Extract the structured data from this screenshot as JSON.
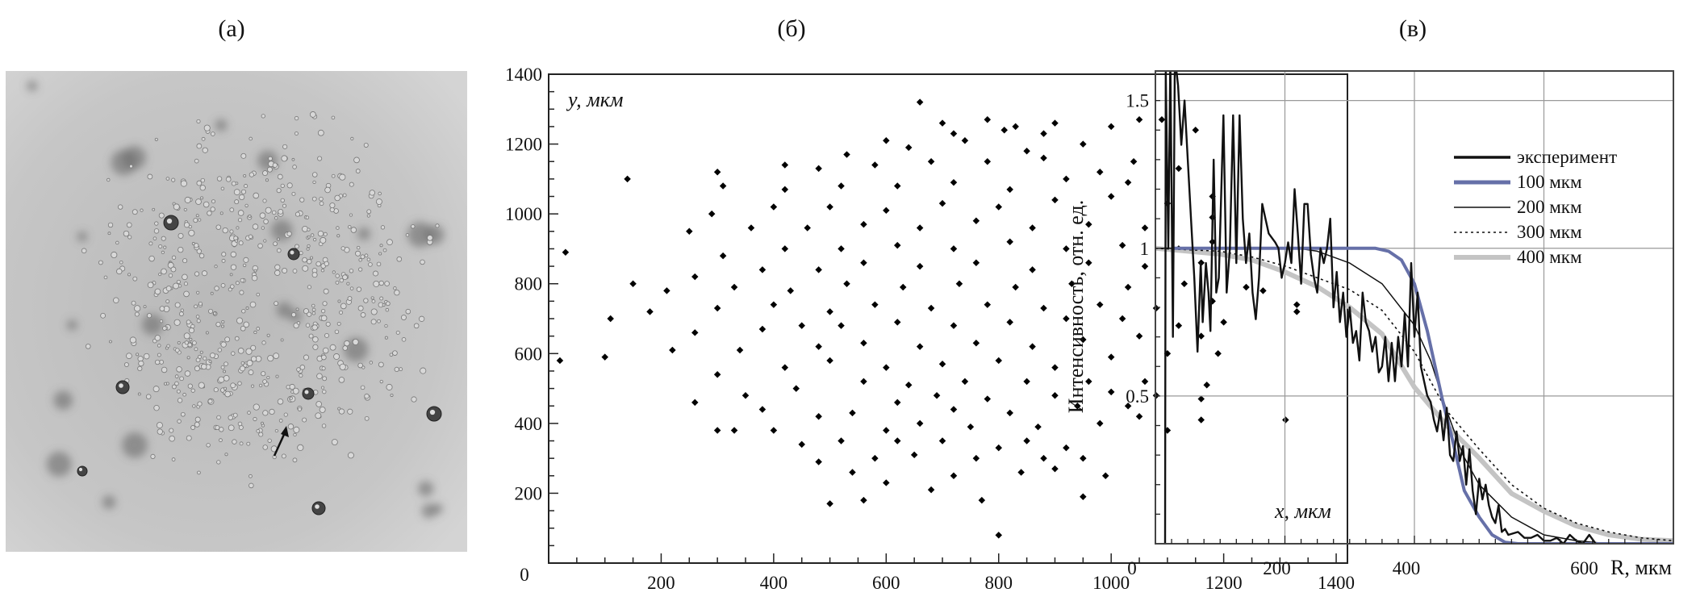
{
  "panels": {
    "a": "(а)",
    "b": "(б)",
    "c": "(в)"
  },
  "chart_data": [
    {
      "type": "image",
      "panel": "(а)",
      "description_visible": "microscope photo of droplet cluster"
    },
    {
      "type": "scatter",
      "panel": "(б)",
      "xlabel": "x, мкм",
      "ylabel": "y, мкм",
      "xlim": [
        0,
        1420
      ],
      "ylim": [
        0,
        1400
      ],
      "origin_label": "0",
      "xticks": [
        200,
        400,
        600,
        800,
        1000,
        1200,
        1400
      ],
      "yticks": [
        200,
        400,
        600,
        800,
        1000,
        1200,
        1400
      ],
      "grid": false,
      "points": [
        [
          30,
          890
        ],
        [
          20,
          580
        ],
        [
          140,
          1100
        ],
        [
          110,
          700
        ],
        [
          100,
          590
        ],
        [
          1330,
          740
        ],
        [
          1330,
          720
        ],
        [
          1310,
          410
        ],
        [
          800,
          80
        ],
        [
          500,
          170
        ],
        [
          950,
          190
        ],
        [
          660,
          1320
        ],
        [
          1090,
          1270
        ],
        [
          1150,
          1240
        ],
        [
          560,
          180
        ],
        [
          770,
          180
        ],
        [
          990,
          250
        ],
        [
          600,
          230
        ],
        [
          680,
          210
        ],
        [
          720,
          250
        ],
        [
          840,
          260
        ],
        [
          900,
          270
        ],
        [
          540,
          260
        ],
        [
          480,
          290
        ],
        [
          580,
          300
        ],
        [
          650,
          310
        ],
        [
          760,
          300
        ],
        [
          880,
          300
        ],
        [
          950,
          300
        ],
        [
          620,
          350
        ],
        [
          700,
          350
        ],
        [
          800,
          330
        ],
        [
          920,
          330
        ],
        [
          450,
          340
        ],
        [
          520,
          350
        ],
        [
          850,
          350
        ],
        [
          1100,
          380
        ],
        [
          1160,
          410
        ],
        [
          1050,
          420
        ],
        [
          980,
          400
        ],
        [
          400,
          380
        ],
        [
          330,
          380
        ],
        [
          300,
          380
        ],
        [
          600,
          380
        ],
        [
          660,
          400
        ],
        [
          750,
          390
        ],
        [
          870,
          390
        ],
        [
          540,
          430
        ],
        [
          480,
          420
        ],
        [
          720,
          440
        ],
        [
          820,
          430
        ],
        [
          940,
          450
        ],
        [
          1030,
          450
        ],
        [
          1160,
          470
        ],
        [
          260,
          460
        ],
        [
          380,
          440
        ],
        [
          620,
          460
        ],
        [
          690,
          480
        ],
        [
          780,
          470
        ],
        [
          900,
          480
        ],
        [
          1000,
          490
        ],
        [
          1080,
          480
        ],
        [
          350,
          480
        ],
        [
          440,
          500
        ],
        [
          560,
          520
        ],
        [
          640,
          510
        ],
        [
          740,
          520
        ],
        [
          850,
          520
        ],
        [
          960,
          520
        ],
        [
          1060,
          520
        ],
        [
          1170,
          510
        ],
        [
          300,
          540
        ],
        [
          420,
          560
        ],
        [
          500,
          580
        ],
        [
          600,
          560
        ],
        [
          700,
          570
        ],
        [
          800,
          580
        ],
        [
          900,
          560
        ],
        [
          1000,
          590
        ],
        [
          1100,
          600
        ],
        [
          1190,
          600
        ],
        [
          220,
          610
        ],
        [
          340,
          610
        ],
        [
          480,
          620
        ],
        [
          560,
          630
        ],
        [
          660,
          620
        ],
        [
          760,
          630
        ],
        [
          860,
          620
        ],
        [
          950,
          640
        ],
        [
          1050,
          650
        ],
        [
          1160,
          650
        ],
        [
          260,
          660
        ],
        [
          380,
          670
        ],
        [
          450,
          680
        ],
        [
          520,
          680
        ],
        [
          620,
          690
        ],
        [
          720,
          680
        ],
        [
          820,
          690
        ],
        [
          920,
          700
        ],
        [
          1020,
          700
        ],
        [
          1120,
          680
        ],
        [
          1200,
          690
        ],
        [
          180,
          720
        ],
        [
          300,
          730
        ],
        [
          400,
          740
        ],
        [
          500,
          720
        ],
        [
          580,
          740
        ],
        [
          680,
          730
        ],
        [
          780,
          740
        ],
        [
          880,
          730
        ],
        [
          980,
          740
        ],
        [
          1080,
          730
        ],
        [
          1180,
          750
        ],
        [
          210,
          780
        ],
        [
          330,
          790
        ],
        [
          430,
          780
        ],
        [
          530,
          800
        ],
        [
          630,
          790
        ],
        [
          730,
          800
        ],
        [
          830,
          790
        ],
        [
          930,
          800
        ],
        [
          1030,
          790
        ],
        [
          1130,
          800
        ],
        [
          1240,
          790
        ],
        [
          1270,
          780
        ],
        [
          150,
          800
        ],
        [
          260,
          820
        ],
        [
          380,
          840
        ],
        [
          480,
          840
        ],
        [
          560,
          860
        ],
        [
          660,
          850
        ],
        [
          760,
          860
        ],
        [
          860,
          840
        ],
        [
          960,
          860
        ],
        [
          1060,
          850
        ],
        [
          1160,
          860
        ],
        [
          310,
          880
        ],
        [
          420,
          900
        ],
        [
          520,
          900
        ],
        [
          620,
          910
        ],
        [
          720,
          900
        ],
        [
          820,
          920
        ],
        [
          920,
          900
        ],
        [
          1020,
          910
        ],
        [
          1120,
          900
        ],
        [
          1180,
          920
        ],
        [
          250,
          950
        ],
        [
          360,
          960
        ],
        [
          460,
          960
        ],
        [
          560,
          970
        ],
        [
          660,
          960
        ],
        [
          760,
          980
        ],
        [
          860,
          960
        ],
        [
          960,
          970
        ],
        [
          1060,
          960
        ],
        [
          1180,
          990
        ],
        [
          290,
          1000
        ],
        [
          400,
          1020
        ],
        [
          500,
          1020
        ],
        [
          600,
          1010
        ],
        [
          700,
          1030
        ],
        [
          800,
          1020
        ],
        [
          900,
          1040
        ],
        [
          1000,
          1050
        ],
        [
          1100,
          1030
        ],
        [
          1180,
          1050
        ],
        [
          310,
          1080
        ],
        [
          420,
          1070
        ],
        [
          520,
          1080
        ],
        [
          620,
          1080
        ],
        [
          720,
          1090
        ],
        [
          820,
          1070
        ],
        [
          920,
          1100
        ],
        [
          1030,
          1090
        ],
        [
          1120,
          1130
        ],
        [
          300,
          1120
        ],
        [
          480,
          1130
        ],
        [
          580,
          1140
        ],
        [
          680,
          1150
        ],
        [
          780,
          1150
        ],
        [
          880,
          1160
        ],
        [
          980,
          1120
        ],
        [
          1040,
          1150
        ],
        [
          420,
          1140
        ],
        [
          530,
          1170
        ],
        [
          640,
          1190
        ],
        [
          740,
          1210
        ],
        [
          850,
          1180
        ],
        [
          950,
          1200
        ],
        [
          600,
          1210
        ],
        [
          720,
          1230
        ],
        [
          810,
          1240
        ],
        [
          900,
          1260
        ],
        [
          1000,
          1250
        ],
        [
          1050,
          1270
        ],
        [
          700,
          1260
        ],
        [
          780,
          1270
        ],
        [
          830,
          1250
        ],
        [
          880,
          1230
        ]
      ]
    },
    {
      "type": "line",
      "panel": "(в)",
      "xlabel": "R, мкм",
      "ylabel": "Интенсивность, отн. ед.",
      "xlim": [
        0,
        800
      ],
      "ylim": [
        0,
        1.6
      ],
      "origin_label": "0",
      "xticks": [
        200,
        400,
        600
      ],
      "yticks": [
        0.5,
        1,
        1.5
      ],
      "grid": true,
      "legend_position": "right",
      "series": [
        {
          "name": "эксперимент",
          "color": "#111111",
          "style": "solid-thick",
          "x": [
            15,
            16,
            20,
            23,
            27,
            30,
            35,
            40,
            45,
            50,
            55,
            60,
            65,
            70,
            73,
            78,
            82,
            85,
            90,
            94,
            98,
            105,
            110,
            115,
            120,
            125,
            130,
            135,
            140,
            145,
            150,
            155,
            160,
            165,
            170,
            175,
            185,
            190,
            195,
            200,
            205,
            210,
            215,
            220,
            225,
            230,
            235,
            240,
            245,
            250,
            255,
            260,
            265,
            270,
            275,
            280,
            285,
            290,
            295,
            300,
            305,
            310,
            315,
            320,
            325,
            330,
            335,
            340,
            345,
            350,
            355,
            360,
            365,
            370,
            375,
            380,
            385,
            390,
            395,
            400,
            405,
            410,
            415,
            420,
            425,
            430,
            435,
            440,
            445,
            450,
            455,
            460,
            465,
            470,
            475,
            480,
            485,
            490,
            495,
            500,
            505,
            510,
            515,
            520,
            525,
            530,
            535,
            540,
            545,
            560,
            570,
            580,
            590,
            600,
            610,
            620,
            630,
            640,
            650,
            660,
            670,
            680
          ],
          "y": [
            0,
            1.6,
            1.0,
            1.65,
            0.7,
            1.65,
            1.55,
            1.35,
            1.5,
            1.3,
            1.1,
            0.9,
            0.65,
            0.95,
            0.75,
            0.95,
            0.85,
            0.72,
            1.3,
            0.85,
            0.9,
            1.45,
            0.85,
            1.0,
            1.45,
            0.95,
            1.45,
            1.1,
            0.95,
            1.05,
            0.85,
            0.76,
            0.9,
            1.15,
            1.1,
            1.05,
            1.02,
            1.0,
            0.9,
            0.95,
            1.02,
            0.95,
            1.2,
            1.05,
            0.88,
            1.15,
            1.15,
            0.98,
            0.9,
            0.85,
            1.0,
            0.95,
            1.0,
            1.1,
            0.8,
            0.92,
            0.75,
            0.85,
            0.7,
            0.8,
            0.68,
            0.72,
            0.62,
            0.85,
            0.75,
            0.72,
            0.65,
            0.7,
            0.58,
            0.6,
            0.7,
            0.55,
            0.68,
            0.55,
            0.7,
            0.6,
            0.78,
            0.6,
            0.95,
            0.7,
            0.85,
            0.6,
            0.55,
            0.5,
            0.48,
            0.42,
            0.38,
            0.45,
            0.35,
            0.46,
            0.3,
            0.28,
            0.38,
            0.28,
            0.33,
            0.2,
            0.32,
            0.18,
            0.1,
            0.22,
            0.15,
            0.2,
            0.13,
            0.09,
            0.07,
            0.13,
            0.04,
            0.05,
            0.03,
            0.04,
            0.02,
            0.02,
            0.03,
            0.01,
            0.01,
            0.02,
            0,
            0.03,
            0.01,
            0,
            0.03,
            0
          ]
        },
        {
          "name": "100 мкм",
          "color": "#6670a8",
          "style": "solid-thick",
          "x": [
            25,
            340,
            360,
            380,
            400,
            420,
            443,
            460,
            477,
            500,
            520,
            540,
            560,
            800
          ],
          "y": [
            1,
            1,
            0.99,
            0.96,
            0.88,
            0.72,
            0.49,
            0.34,
            0.18,
            0.09,
            0.03,
            0.005,
            0,
            0
          ]
        },
        {
          "name": "200 мкм",
          "color": "#111111",
          "style": "solid-thin",
          "x": [
            0,
            220,
            250,
            300,
            350,
            400,
            425,
            450,
            475,
            500,
            550,
            600,
            650,
            700
          ],
          "y": [
            1,
            1,
            0.99,
            0.95,
            0.88,
            0.74,
            0.62,
            0.45,
            0.3,
            0.2,
            0.09,
            0.03,
            0.01,
            0
          ]
        },
        {
          "name": "300 мкм",
          "color": "#111111",
          "style": "dotted",
          "x": [
            0,
            100,
            150,
            200,
            250,
            300,
            350,
            400,
            450,
            500,
            550,
            600,
            650,
            700,
            750,
            800
          ],
          "y": [
            1,
            0.99,
            0.97,
            0.94,
            0.9,
            0.86,
            0.79,
            0.65,
            0.45,
            0.32,
            0.2,
            0.12,
            0.07,
            0.04,
            0.02,
            0.01
          ]
        },
        {
          "name": "400 мкм",
          "color": "#c4c4c4",
          "style": "solid-thick",
          "x": [
            0,
            50,
            100,
            150,
            200,
            250,
            300,
            350,
            400,
            450,
            500,
            550,
            600,
            650,
            700,
            750,
            800
          ],
          "y": [
            1,
            0.99,
            0.98,
            0.96,
            0.92,
            0.87,
            0.8,
            0.71,
            0.53,
            0.4,
            0.29,
            0.17,
            0.11,
            0.06,
            0.03,
            0.015,
            0.01
          ]
        }
      ]
    }
  ]
}
